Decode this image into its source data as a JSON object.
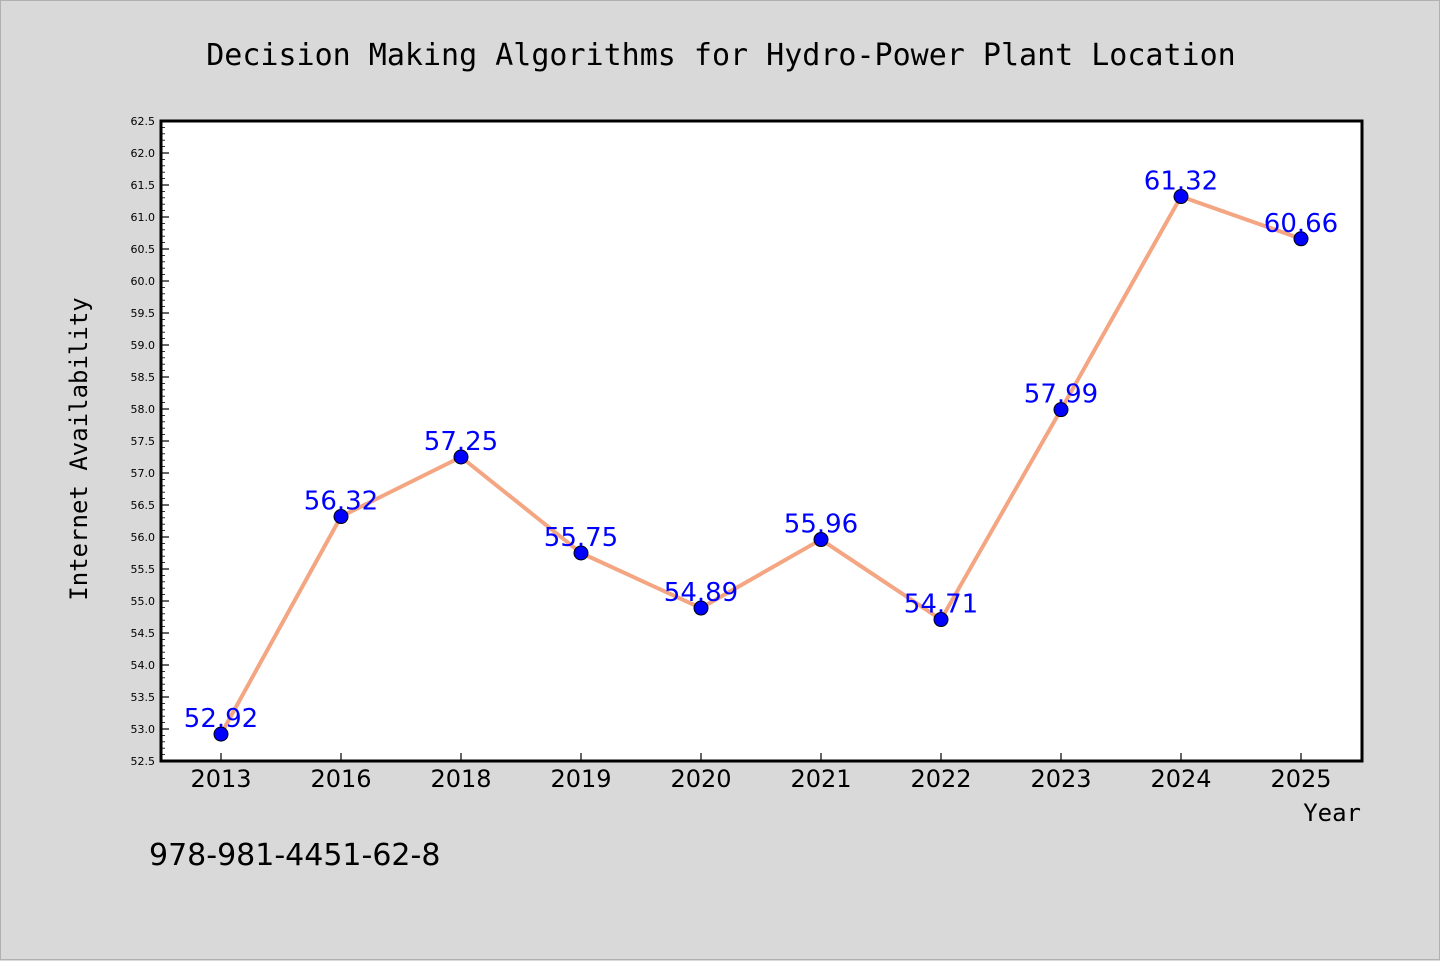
{
  "chart_data": {
    "type": "line",
    "title": "Decision Making Algorithms for Hydro-Power Plant Location",
    "xlabel": "Year",
    "ylabel": "Internet Availability",
    "categories": [
      "2013",
      "2016",
      "2018",
      "2019",
      "2020",
      "2021",
      "2022",
      "2023",
      "2024",
      "2025"
    ],
    "series": [
      {
        "values": [
          52.92,
          56.32,
          57.25,
          55.75,
          54.89,
          55.96,
          54.71,
          57.99,
          61.32,
          60.66
        ],
        "data_labels": [
          "52.92",
          "56.32",
          "57.25",
          "55.75",
          "54.89",
          "55.96",
          "54.71",
          "57.99",
          "61.32",
          "60.66"
        ]
      }
    ],
    "ylim": [
      52.5,
      62.5
    ],
    "yticks": [
      52.5,
      53.0,
      53.5,
      54.0,
      54.5,
      55.0,
      55.5,
      56.0,
      56.5,
      57.0,
      57.5,
      58.0,
      58.5,
      59.0,
      59.5,
      60.0,
      60.5,
      61.0,
      61.5,
      62.0,
      62.5
    ],
    "ytick_labels": [
      "52.5",
      "53.0",
      "53.5",
      "54.0",
      "54.5",
      "55.0",
      "55.5",
      "56.0",
      "56.5",
      "57.0",
      "57.5",
      "58.0",
      "58.5",
      "59.0",
      "59.5",
      "60.0",
      "60.5",
      "61.0",
      "61.5",
      "62.0",
      "62.5"
    ],
    "grid": false,
    "colors": {
      "line": "#f4a582",
      "marker": "#0000ff",
      "data_label": "#0000ff",
      "plot_background": "#ffffff",
      "figure_background": "#d9d9d9"
    }
  },
  "footnote": "978-981-4451-62-8"
}
